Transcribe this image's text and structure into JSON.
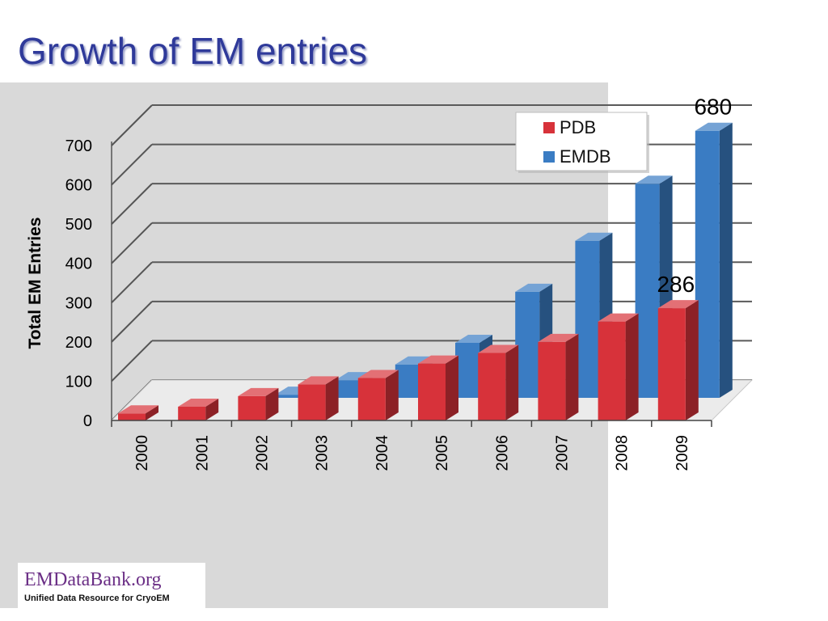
{
  "slide": {
    "title": "Growth of EM entries"
  },
  "logo": {
    "name": "EMDataBank.org",
    "tagline": "Unified Data Resource for CryoEM"
  },
  "colors": {
    "pdb": "#d7323a",
    "emdb": "#3a7cc3",
    "title": "#2f3a9a",
    "panel": "#d9d9d9"
  },
  "chart_data": {
    "type": "bar",
    "variant": "3d-clustered",
    "ylabel": "Total EM Entries",
    "xlabel": "",
    "ylim": [
      0,
      700
    ],
    "yticks": [
      0,
      100,
      200,
      300,
      400,
      500,
      600,
      700
    ],
    "categories": [
      "2000",
      "2001",
      "2002",
      "2003",
      "2004",
      "2005",
      "2006",
      "2007",
      "2008",
      "2009"
    ],
    "series": [
      {
        "name": "PDB",
        "color": "#d7323a",
        "values": [
          18,
          35,
          62,
          92,
          108,
          145,
          172,
          200,
          252,
          286
        ]
      },
      {
        "name": "EMDB",
        "color": "#3a7cc3",
        "values": [
          0,
          0,
          8,
          45,
          85,
          140,
          270,
          400,
          545,
          680
        ]
      }
    ],
    "data_labels": [
      {
        "series": "PDB",
        "category": "2009",
        "text": "286"
      },
      {
        "series": "EMDB",
        "category": "2009",
        "text": "680"
      }
    ],
    "legend": {
      "placement": "top-right"
    },
    "grid": true
  }
}
